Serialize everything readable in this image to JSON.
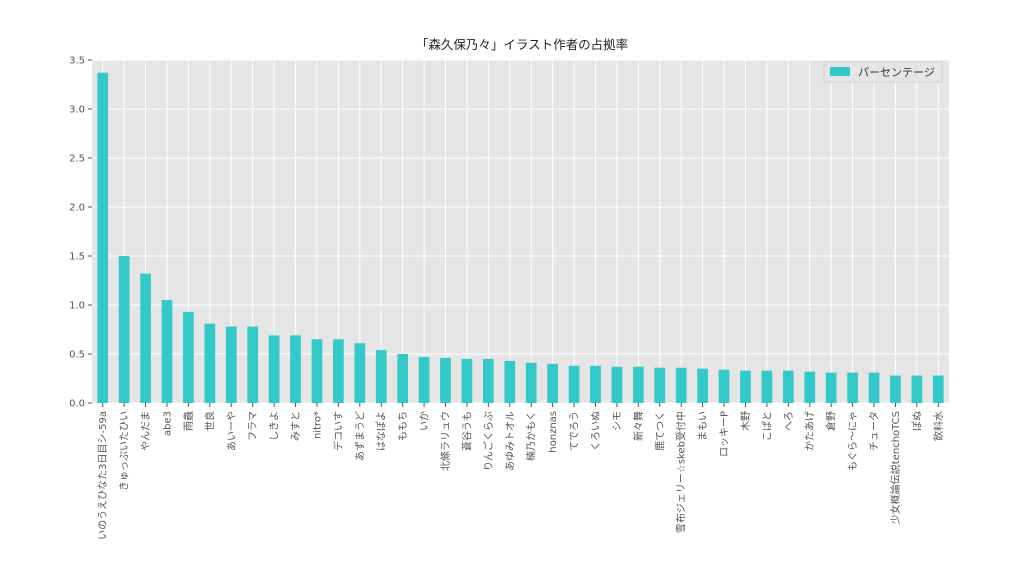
{
  "chart_data": {
    "type": "bar",
    "title": "「森久保乃々」イラスト作者の占拠率",
    "xlabel": "",
    "ylabel": "",
    "ylim": [
      0,
      3.5
    ],
    "yticks": [
      "0.0",
      "0.5",
      "1.0",
      "1.5",
      "2.0",
      "2.5",
      "3.0",
      "3.5"
    ],
    "grid": true,
    "legend_position": "top-right",
    "bar_color": "#33c9c9",
    "categories": [
      "いのうえひなた3日目シ-59a",
      "きゅっぷいたひい",
      "やんだま",
      "abe3",
      "雨蟲",
      "世良",
      "あいーや",
      "フラマ",
      "しきよ",
      "みすと",
      "nitro*",
      "デコいす",
      "あずまうど",
      "はなぽよ",
      "ももち",
      "いか",
      "北條ラリュウ",
      "蒼谷うも",
      "りんごくらぶ",
      "あゆみトオル",
      "楠乃かもく",
      "honznas",
      "てでろう",
      "くろいぬ",
      "シモ",
      "新々舞",
      "鹿てつく",
      "雪布ジェリー☆skeb受付中",
      "まもい",
      "ロッキーP",
      "木野",
      "こぱと",
      "へろ",
      "かたあげ",
      "倉野",
      "もぐら〜にゃ",
      "チュータ",
      "少女概論伝説tenchoTCS",
      "ぽぬ",
      "飲料水"
    ],
    "series": [
      {
        "name": "パーセンテージ",
        "values": [
          3.37,
          1.5,
          1.32,
          1.05,
          0.93,
          0.81,
          0.78,
          0.78,
          0.69,
          0.69,
          0.65,
          0.65,
          0.61,
          0.54,
          0.5,
          0.47,
          0.46,
          0.45,
          0.45,
          0.43,
          0.41,
          0.4,
          0.38,
          0.38,
          0.37,
          0.37,
          0.36,
          0.36,
          0.35,
          0.34,
          0.33,
          0.33,
          0.33,
          0.32,
          0.31,
          0.31,
          0.31,
          0.28,
          0.28,
          0.28
        ]
      }
    ]
  }
}
